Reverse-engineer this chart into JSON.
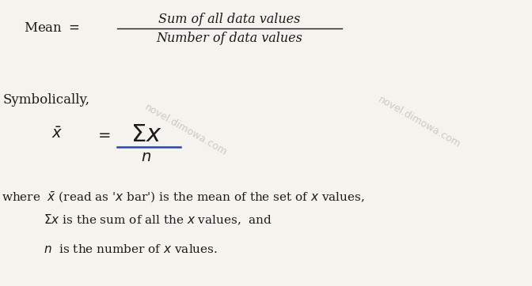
{
  "background_color": "#f5f3ee",
  "text_color": "#1a1a1a",
  "fig_width": 6.72,
  "fig_height": 3.62,
  "dpi": 100,
  "line1_numerator": "Sum of all data values",
  "line1_denominator": "Number of data values",
  "symbolic_label": "Symbolically,",
  "watermark": "novel.dimowa.com",
  "wm_color": "#aaa090",
  "wm_alpha": 0.5,
  "wm_rotation": -30,
  "wm_fontsize": 9
}
